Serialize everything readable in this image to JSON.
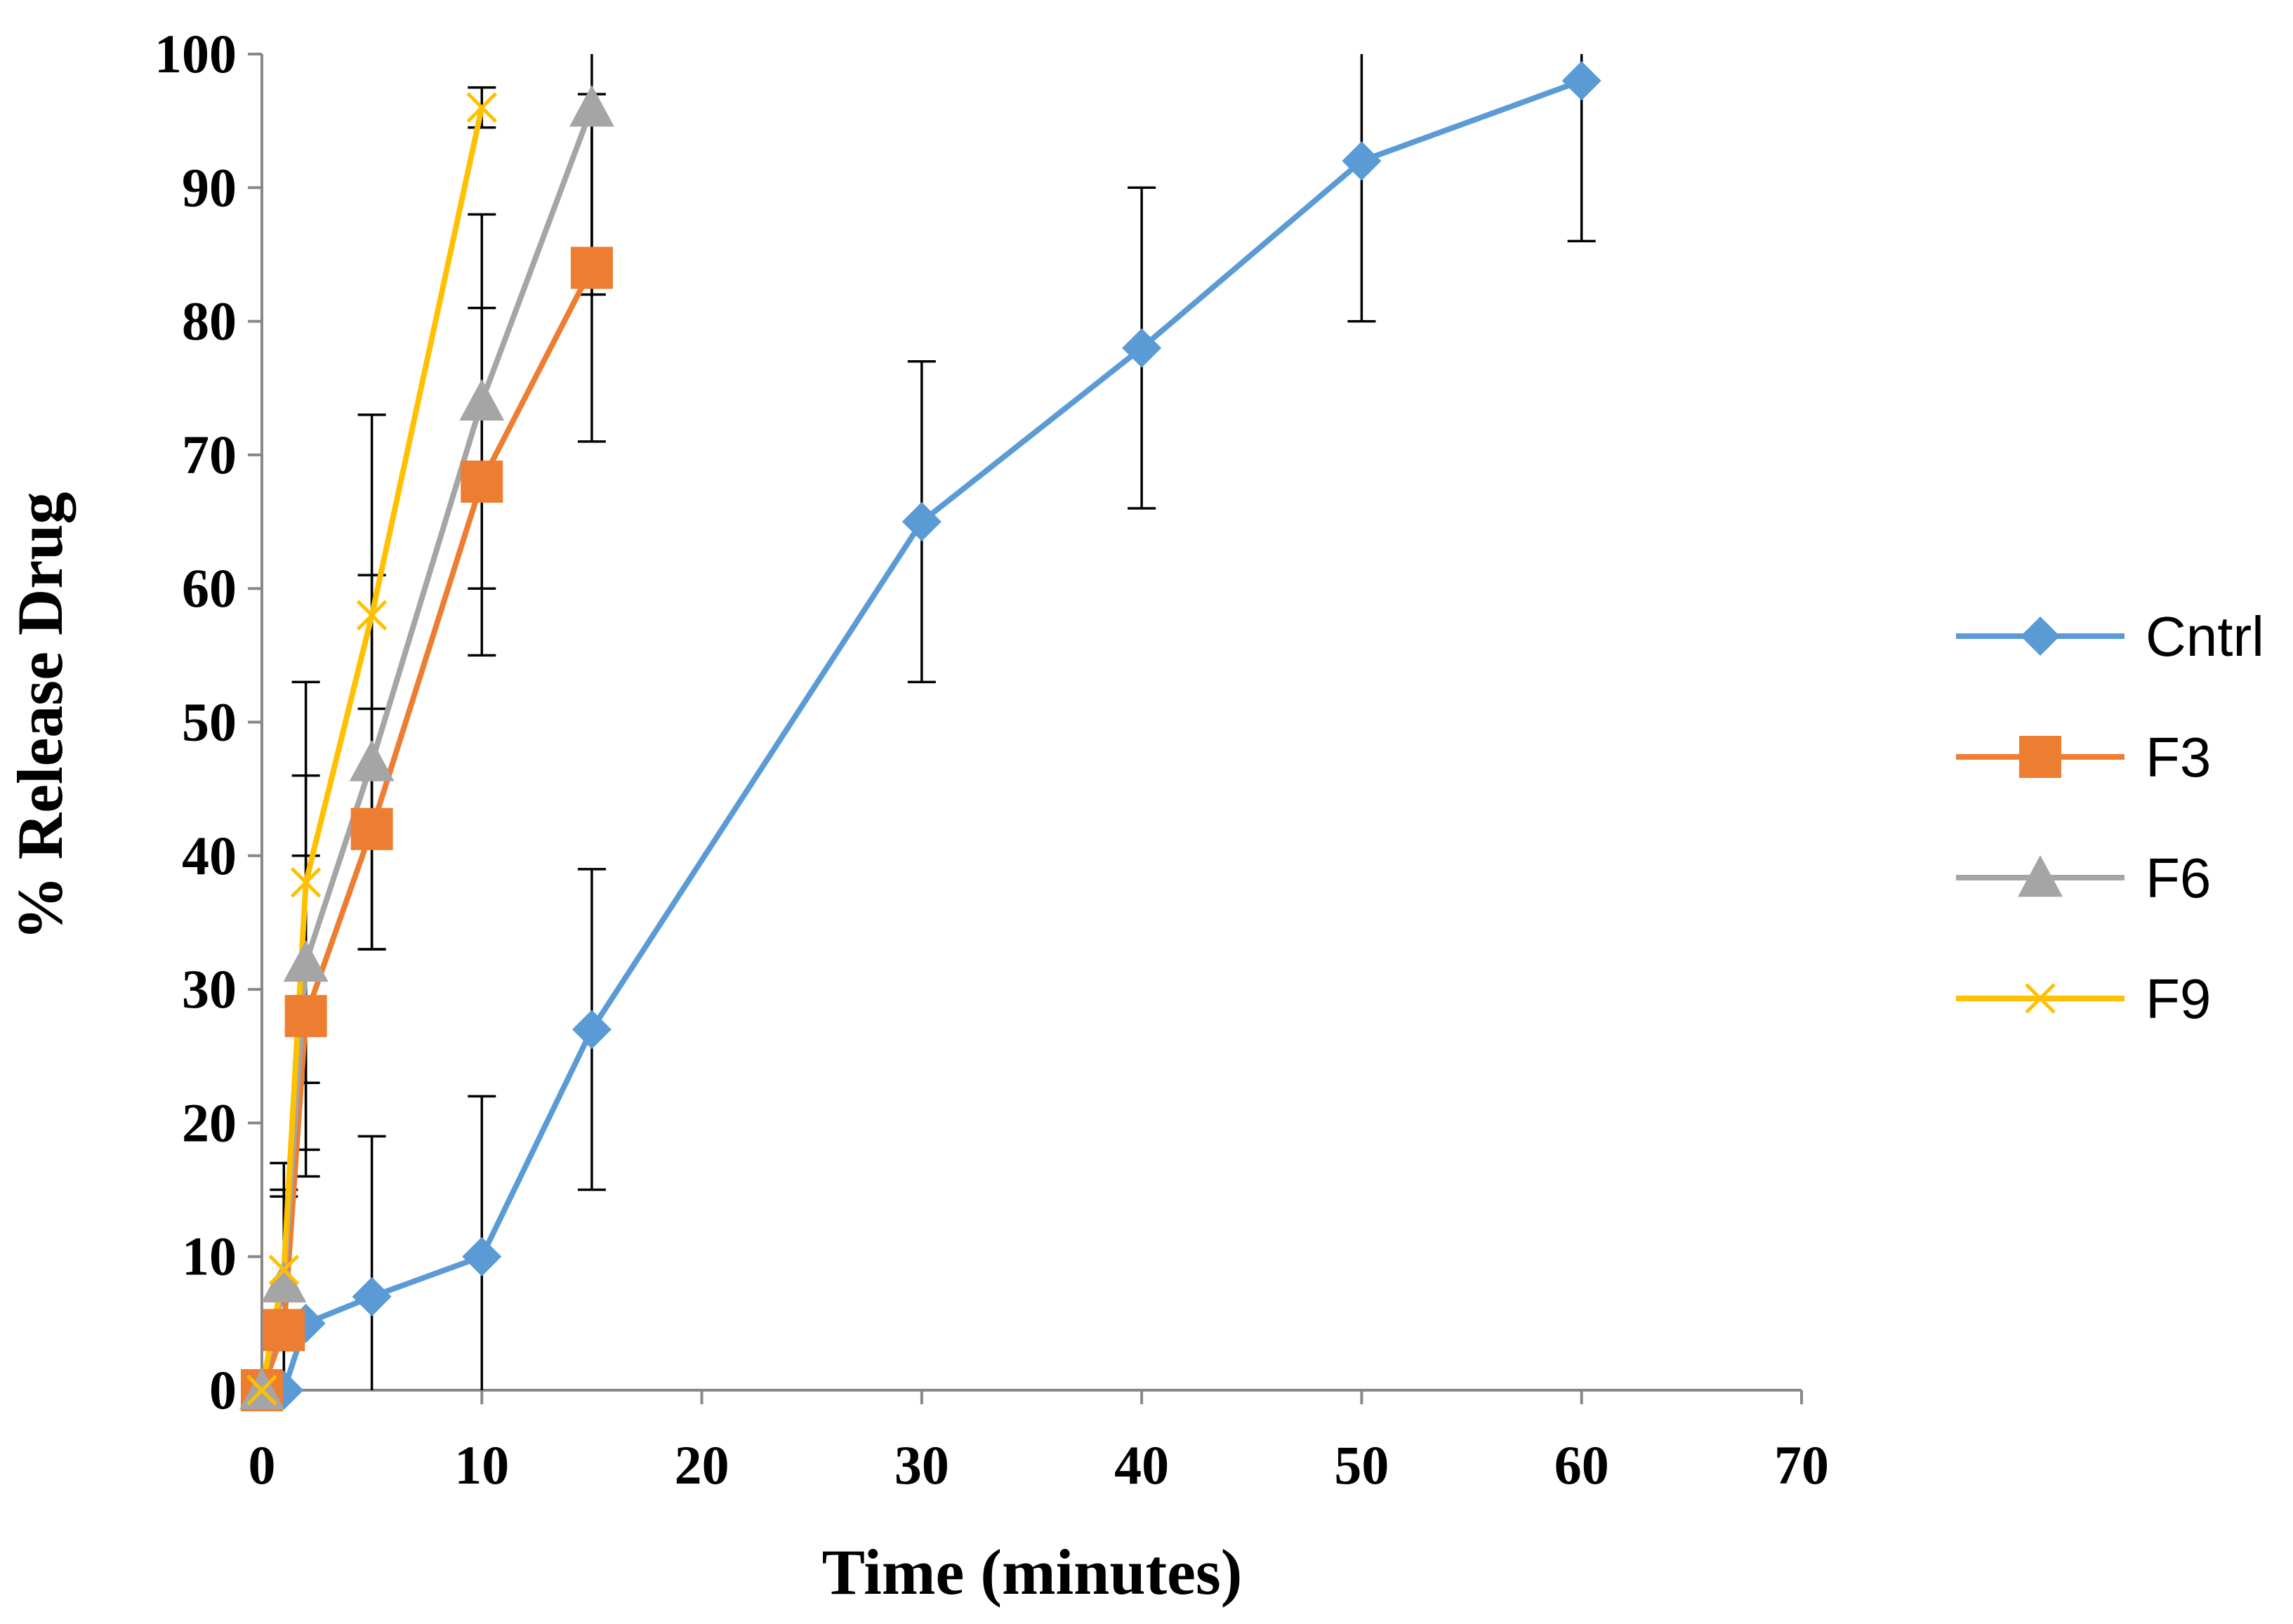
{
  "chart_data": {
    "type": "line",
    "title": "",
    "xlabel": "Time (minutes)",
    "ylabel": "% Release Drug",
    "xlim": [
      0,
      70
    ],
    "ylim": [
      0,
      100
    ],
    "xticks": [
      0,
      10,
      20,
      30,
      40,
      50,
      60,
      70
    ],
    "yticks": [
      0,
      10,
      20,
      30,
      40,
      50,
      60,
      70,
      80,
      90,
      100
    ],
    "grid": false,
    "legend_position": "right",
    "series": [
      {
        "name": "Cntrl",
        "color": "#5b9bd5",
        "marker": "diamond",
        "x": [
          0,
          1,
          2,
          5,
          10,
          15,
          30,
          40,
          50,
          60
        ],
        "y": [
          0,
          0,
          5,
          7,
          10,
          27,
          65,
          78,
          92,
          98
        ],
        "error": [
          0,
          0,
          0,
          12,
          12,
          12,
          12,
          12,
          12,
          12
        ]
      },
      {
        "name": "F3",
        "color": "#ed7d31",
        "marker": "square",
        "x": [
          0,
          1,
          2,
          5,
          10,
          15
        ],
        "y": [
          0,
          4.5,
          28,
          42,
          68,
          84
        ],
        "error": [
          0,
          10,
          12,
          9,
          13,
          13
        ]
      },
      {
        "name": "F6",
        "color": "#a5a5a5",
        "marker": "triangle",
        "x": [
          0,
          1,
          2,
          5,
          10,
          15
        ],
        "y": [
          0,
          8,
          32,
          47,
          74,
          96
        ],
        "error": [
          0,
          9,
          14,
          14,
          14,
          14
        ]
      },
      {
        "name": "F9",
        "color": "#ffc000",
        "marker": "x",
        "x": [
          0,
          1,
          2,
          5,
          10
        ],
        "y": [
          0,
          9,
          38,
          58,
          96
        ],
        "error": [
          0,
          6,
          15,
          15,
          1.5
        ]
      }
    ]
  }
}
